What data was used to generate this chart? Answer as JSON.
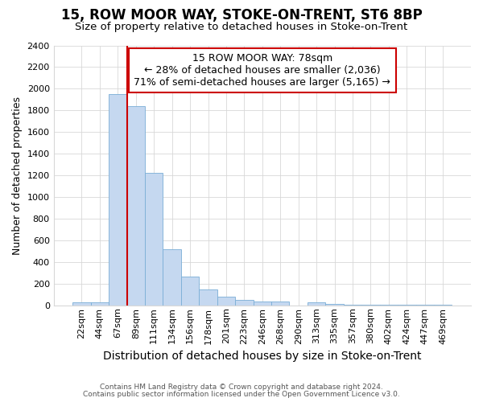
{
  "title": "15, ROW MOOR WAY, STOKE-ON-TRENT, ST6 8BP",
  "subtitle": "Size of property relative to detached houses in Stoke-on-Trent",
  "xlabel": "Distribution of detached houses by size in Stoke-on-Trent",
  "ylabel": "Number of detached properties",
  "categories": [
    "22sqm",
    "44sqm",
    "67sqm",
    "89sqm",
    "111sqm",
    "134sqm",
    "156sqm",
    "178sqm",
    "201sqm",
    "223sqm",
    "246sqm",
    "268sqm",
    "290sqm",
    "313sqm",
    "335sqm",
    "357sqm",
    "380sqm",
    "402sqm",
    "424sqm",
    "447sqm",
    "469sqm"
  ],
  "values": [
    30,
    30,
    1950,
    1840,
    1220,
    520,
    265,
    145,
    80,
    50,
    35,
    35,
    0,
    30,
    15,
    5,
    5,
    3,
    3,
    2,
    2
  ],
  "bar_color": "#c5d8f0",
  "bar_edge_color": "#7aaed6",
  "property_label": "15 ROW MOOR WAY: 78sqm",
  "annotation_line1": "← 28% of detached houses are smaller (2,036)",
  "annotation_line2": "71% of semi-detached houses are larger (5,165) →",
  "vline_color": "#cc0000",
  "vline_x_index": 2.0,
  "box_color": "#cc0000",
  "ylim": [
    0,
    2400
  ],
  "yticks": [
    0,
    200,
    400,
    600,
    800,
    1000,
    1200,
    1400,
    1600,
    1800,
    2000,
    2200,
    2400
  ],
  "footnote1": "Contains HM Land Registry data © Crown copyright and database right 2024.",
  "footnote2": "Contains public sector information licensed under the Open Government Licence v3.0.",
  "bg_color": "#f5f5f5",
  "grid_color": "#d8d8d8",
  "title_fontsize": 12,
  "subtitle_fontsize": 9.5,
  "xlabel_fontsize": 10,
  "ylabel_fontsize": 9,
  "tick_fontsize": 8,
  "annotation_fontsize": 9
}
